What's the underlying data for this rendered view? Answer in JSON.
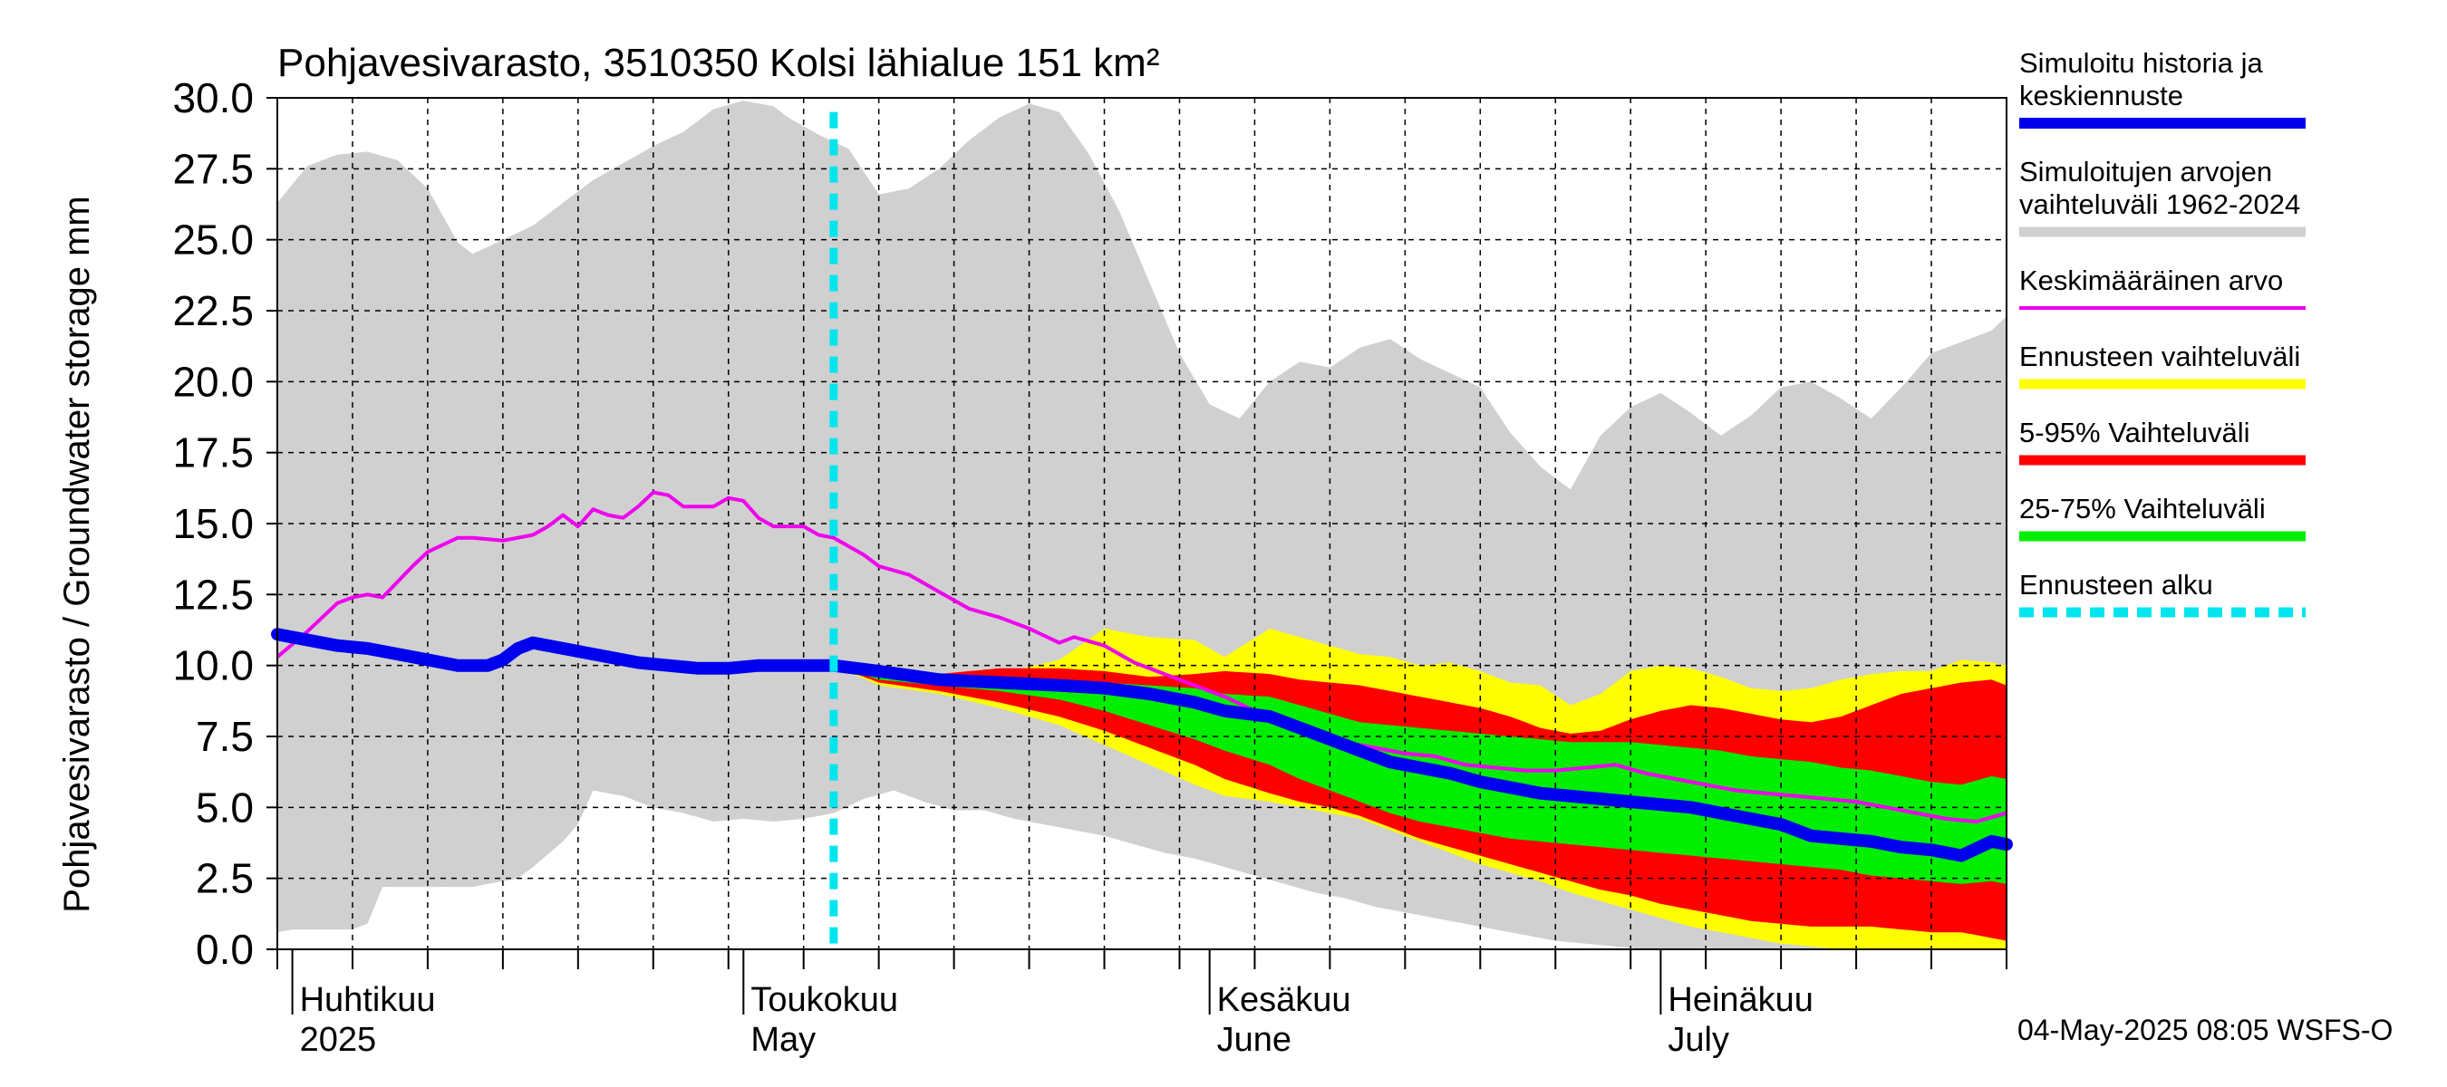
{
  "chart_data": {
    "type": "area",
    "title": "Pohjavesivarasto, 3510350 Kolsi lähialue 151 km²",
    "ylabel": "Pohjavesivarasto / Groundwater storage   mm",
    "ylim": [
      0,
      30
    ],
    "yticks": [
      "0.0",
      "2.5",
      "5.0",
      "7.5",
      "10.0",
      "12.5",
      "15.0",
      "17.5",
      "20.0",
      "22.5",
      "25.0",
      "27.5",
      "30.0"
    ],
    "x_unit": "days since 2025-03-28",
    "xlim": [
      0,
      115
    ],
    "forecast_start_day": 37,
    "month_labels": [
      {
        "day": 4,
        "line1": "Huhtikuu",
        "line2": "2025"
      },
      {
        "day": 34,
        "line1": "Toukokuu",
        "line2": "May"
      },
      {
        "day": 65,
        "line1": "Kesäkuu",
        "line2": "June"
      },
      {
        "day": 95,
        "line1": "Heinäkuu",
        "line2": "July"
      }
    ],
    "footer": "04-May-2025 08:05 WSFS-O",
    "legend": [
      {
        "key": "sim",
        "label_lines": [
          "Simuloitu historia ja",
          "keskiennuste"
        ],
        "color": "#0000ee"
      },
      {
        "key": "hist_range",
        "label_lines": [
          "Simuloitujen arvojen",
          "vaihteluväli 1962-2024"
        ],
        "color": "#d0d0d0"
      },
      {
        "key": "mean",
        "label_lines": [
          "Keskimääräinen arvo"
        ],
        "color": "#ee00ee"
      },
      {
        "key": "fc_range",
        "label_lines": [
          "Ennusteen vaihteluväli"
        ],
        "color": "#ffff00"
      },
      {
        "key": "p5_95",
        "label_lines": [
          "5-95% Vaihteluväli"
        ],
        "color": "#ff0000"
      },
      {
        "key": "p25_75",
        "label_lines": [
          "25-75% Vaihteluväli"
        ],
        "color": "#00ee00"
      },
      {
        "key": "fc_start",
        "label_lines": [
          "Ennusteen alku"
        ],
        "color": "#00e5ee"
      }
    ],
    "series": {
      "hist_max": {
        "x": [
          0,
          2,
          4,
          6,
          8,
          10,
          12,
          13,
          15,
          17,
          19,
          21,
          23,
          25,
          27,
          29,
          31,
          33,
          34,
          36,
          38,
          40,
          42,
          44,
          46,
          48,
          50,
          52,
          54,
          56,
          58,
          60,
          62,
          64,
          66,
          68,
          70,
          72,
          74,
          76,
          78,
          80,
          82,
          84,
          86,
          88,
          90,
          92,
          94,
          96,
          98,
          100,
          102,
          104,
          106,
          108,
          110,
          112,
          114,
          115
        ],
        "y": [
          26.3,
          27.6,
          28.0,
          28.1,
          27.8,
          26.8,
          24.9,
          24.5,
          25.0,
          25.5,
          26.3,
          27.1,
          27.7,
          28.3,
          28.8,
          29.6,
          29.9,
          29.7,
          29.3,
          28.7,
          28.2,
          26.6,
          26.8,
          27.5,
          28.5,
          29.3,
          29.8,
          29.5,
          28.0,
          26.0,
          23.5,
          21.0,
          19.2,
          18.7,
          20.0,
          20.7,
          20.5,
          21.2,
          21.5,
          20.8,
          20.3,
          19.8,
          18.2,
          17.0,
          16.2,
          18.1,
          19.1,
          19.6,
          18.9,
          18.1,
          18.8,
          19.8,
          20.0,
          19.4,
          18.7,
          19.8,
          21.0,
          21.4,
          21.8,
          22.3
        ]
      },
      "hist_min": {
        "x": [
          0,
          1,
          5,
          6,
          7,
          10,
          12,
          13,
          14,
          15,
          16,
          17,
          19,
          20,
          21,
          23,
          25,
          27,
          29,
          31,
          33,
          35,
          37,
          39,
          41,
          43,
          45,
          47,
          49,
          51,
          53,
          55,
          57,
          59,
          61,
          63,
          65,
          67,
          69,
          71,
          73,
          75,
          77,
          79,
          81,
          83,
          85,
          87,
          89,
          91,
          93,
          95,
          97,
          99,
          101,
          103,
          105,
          107,
          109,
          111,
          113,
          115
        ],
        "y": [
          0.6,
          0.7,
          0.7,
          0.9,
          2.2,
          2.2,
          2.2,
          2.2,
          2.3,
          2.4,
          2.5,
          2.9,
          3.8,
          4.4,
          5.6,
          5.4,
          5.0,
          4.8,
          4.5,
          4.6,
          4.5,
          4.6,
          4.8,
          5.3,
          5.6,
          5.2,
          4.9,
          4.9,
          4.6,
          4.4,
          4.2,
          4.0,
          3.7,
          3.4,
          3.2,
          2.9,
          2.6,
          2.3,
          2.0,
          1.8,
          1.5,
          1.3,
          1.1,
          0.9,
          0.7,
          0.5,
          0.3,
          0.2,
          0.1,
          0.0,
          0.0,
          0.0,
          0.0,
          0.0,
          0.0,
          0.0,
          0.0,
          0.0,
          0.0,
          0.0,
          0.0,
          0.0
        ]
      },
      "fc_max": {
        "x": [
          37,
          40,
          44,
          48,
          52,
          55,
          58,
          61,
          63,
          66,
          68,
          70,
          72,
          74,
          76,
          78,
          80,
          82,
          84,
          86,
          88,
          90,
          92,
          94,
          96,
          98,
          100,
          102,
          104,
          106,
          108,
          110,
          112,
          114,
          115
        ],
        "y": [
          10.0,
          9.8,
          9.7,
          9.7,
          10.2,
          11.3,
          11.0,
          10.9,
          10.3,
          11.3,
          11.0,
          10.7,
          10.4,
          10.3,
          10.0,
          10.1,
          9.8,
          9.4,
          9.3,
          8.6,
          9.0,
          9.8,
          10.0,
          9.9,
          9.6,
          9.2,
          9.1,
          9.2,
          9.5,
          9.7,
          9.8,
          9.8,
          10.2,
          10.1,
          10.0
        ]
      },
      "p95": {
        "x": [
          37,
          40,
          44,
          48,
          52,
          55,
          58,
          61,
          63,
          66,
          68,
          70,
          72,
          74,
          76,
          78,
          80,
          82,
          84,
          86,
          88,
          90,
          92,
          94,
          96,
          98,
          100,
          102,
          104,
          106,
          108,
          110,
          112,
          114,
          115
        ],
        "y": [
          10.0,
          9.8,
          9.7,
          9.9,
          9.9,
          9.8,
          9.6,
          9.7,
          9.8,
          9.7,
          9.5,
          9.4,
          9.3,
          9.1,
          8.9,
          8.7,
          8.5,
          8.2,
          7.8,
          7.6,
          7.7,
          8.1,
          8.4,
          8.6,
          8.5,
          8.3,
          8.1,
          8.0,
          8.2,
          8.6,
          9.0,
          9.2,
          9.4,
          9.5,
          9.3
        ]
      },
      "p75": {
        "x": [
          37,
          40,
          44,
          48,
          52,
          55,
          58,
          61,
          63,
          66,
          68,
          70,
          72,
          74,
          76,
          78,
          80,
          82,
          84,
          86,
          88,
          90,
          92,
          94,
          96,
          98,
          100,
          102,
          104,
          106,
          108,
          110,
          112,
          114,
          115
        ],
        "y": [
          10.0,
          9.7,
          9.6,
          9.6,
          9.5,
          9.4,
          9.3,
          9.2,
          9.0,
          8.9,
          8.6,
          8.3,
          8.0,
          7.9,
          7.8,
          7.7,
          7.6,
          7.5,
          7.4,
          7.3,
          7.3,
          7.3,
          7.2,
          7.1,
          7.0,
          6.8,
          6.7,
          6.6,
          6.4,
          6.3,
          6.1,
          5.9,
          5.8,
          6.1,
          6.0
        ]
      },
      "p25": {
        "x": [
          37,
          40,
          44,
          48,
          52,
          55,
          58,
          61,
          63,
          66,
          68,
          70,
          72,
          74,
          76,
          78,
          80,
          82,
          84,
          86,
          88,
          90,
          92,
          94,
          96,
          98,
          100,
          102,
          104,
          106,
          108,
          110,
          112,
          114,
          115
        ],
        "y": [
          10.0,
          9.5,
          9.3,
          9.1,
          8.8,
          8.4,
          7.9,
          7.4,
          7.0,
          6.5,
          6.0,
          5.6,
          5.2,
          4.8,
          4.5,
          4.3,
          4.1,
          3.9,
          3.8,
          3.7,
          3.6,
          3.5,
          3.4,
          3.3,
          3.2,
          3.1,
          3.0,
          2.9,
          2.8,
          2.6,
          2.5,
          2.4,
          2.3,
          2.4,
          2.3
        ]
      },
      "p5": {
        "x": [
          37,
          40,
          44,
          48,
          52,
          55,
          58,
          61,
          63,
          66,
          68,
          70,
          72,
          74,
          76,
          78,
          80,
          82,
          84,
          86,
          88,
          90,
          92,
          94,
          96,
          98,
          100,
          102,
          104,
          106,
          108,
          110,
          112,
          114,
          115
        ],
        "y": [
          10.0,
          9.4,
          9.1,
          8.7,
          8.2,
          7.7,
          7.1,
          6.5,
          6.0,
          5.5,
          5.2,
          5.0,
          4.7,
          4.3,
          3.9,
          3.6,
          3.3,
          3.0,
          2.7,
          2.4,
          2.1,
          1.9,
          1.6,
          1.4,
          1.2,
          1.0,
          0.9,
          0.8,
          0.8,
          0.8,
          0.7,
          0.6,
          0.6,
          0.4,
          0.3
        ]
      },
      "fc_min": {
        "x": [
          37,
          40,
          44,
          48,
          52,
          55,
          58,
          61,
          63,
          66,
          68,
          70,
          72,
          74,
          76,
          78,
          80,
          82,
          84,
          86,
          88,
          90,
          92,
          94,
          96,
          98,
          100,
          102,
          104,
          106,
          108,
          110,
          112,
          114,
          115
        ],
        "y": [
          10.0,
          9.3,
          9.0,
          8.5,
          7.9,
          7.2,
          6.5,
          5.8,
          5.4,
          5.2,
          5.0,
          4.8,
          4.6,
          4.2,
          3.8,
          3.4,
          3.0,
          2.7,
          2.4,
          2.0,
          1.7,
          1.4,
          1.1,
          0.8,
          0.6,
          0.4,
          0.2,
          0.1,
          0.0,
          0.0,
          0.0,
          0.0,
          0.0,
          0.0,
          0.0
        ]
      },
      "mean": {
        "x": [
          0,
          2,
          4,
          5,
          6,
          7,
          9,
          10,
          12,
          13,
          15,
          17,
          18,
          19,
          20,
          21,
          22,
          23,
          24,
          25,
          26,
          27,
          28,
          29,
          30,
          31,
          32,
          33,
          34,
          35,
          36,
          37,
          38,
          39,
          40,
          42,
          44,
          46,
          48,
          50,
          52,
          53,
          55,
          57,
          59,
          61,
          63,
          65,
          67,
          69,
          71,
          73,
          75,
          77,
          79,
          81,
          83,
          85,
          87,
          89,
          91,
          93,
          95,
          97,
          99,
          101,
          103,
          105,
          107,
          109,
          111,
          113,
          115
        ],
        "y": [
          10.3,
          11.2,
          12.2,
          12.4,
          12.5,
          12.4,
          13.5,
          14.0,
          14.5,
          14.5,
          14.4,
          14.6,
          14.9,
          15.3,
          14.9,
          15.5,
          15.3,
          15.2,
          15.6,
          16.1,
          16.0,
          15.6,
          15.6,
          15.6,
          15.9,
          15.8,
          15.2,
          14.9,
          14.9,
          14.9,
          14.6,
          14.5,
          14.2,
          13.9,
          13.5,
          13.2,
          12.6,
          12.0,
          11.7,
          11.3,
          10.8,
          11.0,
          10.7,
          10.1,
          9.7,
          9.3,
          8.9,
          8.4,
          7.9,
          7.5,
          7.3,
          7.1,
          6.9,
          6.8,
          6.5,
          6.4,
          6.3,
          6.3,
          6.4,
          6.5,
          6.2,
          6.0,
          5.8,
          5.6,
          5.5,
          5.4,
          5.3,
          5.2,
          5.0,
          4.8,
          4.6,
          4.5,
          4.8
        ]
      },
      "sim": {
        "x": [
          0,
          2,
          4,
          6,
          8,
          10,
          12,
          14,
          15,
          16,
          17,
          18,
          20,
          22,
          24,
          26,
          28,
          30,
          32,
          34,
          36,
          37,
          40,
          44,
          48,
          52,
          55,
          58,
          61,
          63,
          66,
          68,
          70,
          72,
          74,
          76,
          78,
          80,
          82,
          84,
          86,
          88,
          90,
          92,
          94,
          96,
          98,
          100,
          102,
          104,
          106,
          108,
          110,
          112,
          114,
          115
        ],
        "y": [
          11.1,
          10.9,
          10.7,
          10.6,
          10.4,
          10.2,
          10.0,
          10.0,
          10.2,
          10.6,
          10.8,
          10.7,
          10.5,
          10.3,
          10.1,
          10.0,
          9.9,
          9.9,
          10.0,
          10.0,
          10.0,
          10.0,
          9.8,
          9.5,
          9.4,
          9.3,
          9.2,
          9.0,
          8.7,
          8.4,
          8.2,
          7.8,
          7.4,
          7.0,
          6.6,
          6.4,
          6.2,
          5.9,
          5.7,
          5.5,
          5.4,
          5.3,
          5.2,
          5.1,
          5.0,
          4.8,
          4.6,
          4.4,
          4.0,
          3.9,
          3.8,
          3.6,
          3.5,
          3.3,
          3.8,
          3.7
        ]
      }
    }
  }
}
